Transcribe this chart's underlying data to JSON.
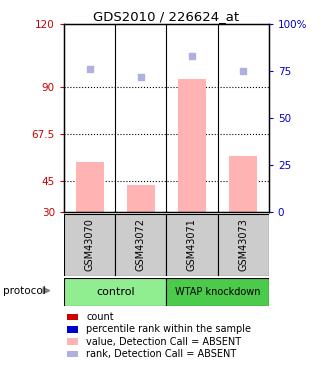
{
  "title": "GDS2010 / 226624_at",
  "samples": [
    "GSM43070",
    "GSM43072",
    "GSM43071",
    "GSM43073"
  ],
  "left_yticks": [
    30,
    45,
    67.5,
    90,
    120
  ],
  "left_ytick_labels": [
    "30",
    "45",
    "67.5",
    "90",
    "120"
  ],
  "right_yticks": [
    0,
    25,
    50,
    75,
    100
  ],
  "right_ytick_labels": [
    "0",
    "25",
    "50",
    "75",
    "100%"
  ],
  "ylim_left": [
    30,
    120
  ],
  "ylim_right": [
    0,
    100
  ],
  "bar_values": [
    54,
    43,
    94,
    57
  ],
  "rank_values": [
    76,
    72,
    83,
    75
  ],
  "bar_color": "#ffb3b3",
  "rank_color": "#b0b0e0",
  "count_color": "#cc0000",
  "percentile_color": "#0000cc",
  "ctrl_color": "#90ee90",
  "wtap_color": "#4cca4c",
  "sample_bg_color": "#cccccc",
  "bar_bottom": 30,
  "bar_width": 0.55,
  "dotted_lines": [
    45,
    67.5,
    90
  ],
  "legend_items": [
    {
      "label": "count",
      "color": "#cc0000"
    },
    {
      "label": "percentile rank within the sample",
      "color": "#0000cc"
    },
    {
      "label": "value, Detection Call = ABSENT",
      "color": "#ffb3b3"
    },
    {
      "label": "rank, Detection Call = ABSENT",
      "color": "#b0b0e0"
    }
  ]
}
